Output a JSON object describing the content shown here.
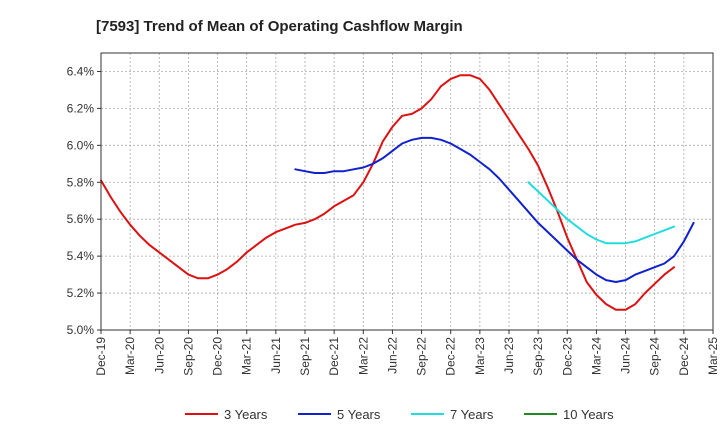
{
  "chart_data": {
    "type": "line",
    "title": "[7593]  Trend of Mean of Operating Cashflow Margin",
    "xlabel": "",
    "ylabel": "",
    "ylim": [
      5.0,
      6.5
    ],
    "y_ticks": [
      5.0,
      5.2,
      5.4,
      5.6,
      5.8,
      6.0,
      6.2,
      6.4
    ],
    "y_tick_labels": [
      "5.0%",
      "5.2%",
      "5.4%",
      "5.6%",
      "5.8%",
      "6.0%",
      "6.2%",
      "6.4%"
    ],
    "x_ticks": [
      "Dec-19",
      "Mar-20",
      "Jun-20",
      "Sep-20",
      "Dec-20",
      "Mar-21",
      "Jun-21",
      "Sep-21",
      "Dec-21",
      "Mar-22",
      "Jun-22",
      "Sep-22",
      "Dec-22",
      "Mar-23",
      "Jun-23",
      "Sep-23",
      "Dec-23",
      "Mar-24",
      "Jun-24",
      "Sep-24",
      "Dec-24",
      "Mar-25"
    ],
    "grid": true,
    "legend_position": "bottom",
    "series": [
      {
        "name": "3 Years",
        "color": "#dd1111",
        "start_index": 0,
        "values": [
          5.81,
          5.72,
          5.64,
          5.57,
          5.51,
          5.46,
          5.42,
          5.38,
          5.34,
          5.3,
          5.28,
          5.28,
          5.3,
          5.33,
          5.37,
          5.42,
          5.46,
          5.5,
          5.53,
          5.55,
          5.57,
          5.58,
          5.6,
          5.63,
          5.67,
          5.7,
          5.73,
          5.8,
          5.9,
          6.02,
          6.1,
          6.16,
          6.17,
          6.2,
          6.25,
          6.32,
          6.36,
          6.38,
          6.38,
          6.36,
          6.3,
          6.22,
          6.14,
          6.06,
          5.98,
          5.89,
          5.77,
          5.64,
          5.5,
          5.38,
          5.26,
          5.19,
          5.14,
          5.11,
          5.11,
          5.14,
          5.2,
          5.25,
          5.3,
          5.34
        ]
      },
      {
        "name": "5 Years",
        "color": "#1122cc",
        "start_index": 20,
        "values": [
          5.87,
          5.86,
          5.85,
          5.85,
          5.86,
          5.86,
          5.87,
          5.88,
          5.9,
          5.93,
          5.97,
          6.01,
          6.03,
          6.04,
          6.04,
          6.03,
          6.01,
          5.98,
          5.95,
          5.91,
          5.87,
          5.82,
          5.76,
          5.7,
          5.64,
          5.58,
          5.53,
          5.48,
          5.43,
          5.38,
          5.34,
          5.3,
          5.27,
          5.26,
          5.27,
          5.3,
          5.32,
          5.34,
          5.36,
          5.4,
          5.48,
          5.58
        ]
      },
      {
        "name": "7 Years",
        "color": "#22dddd",
        "start_index": 44,
        "values": [
          5.8,
          5.75,
          5.7,
          5.65,
          5.6,
          5.56,
          5.52,
          5.49,
          5.47,
          5.47,
          5.47,
          5.48,
          5.5,
          5.52,
          5.54,
          5.56
        ]
      },
      {
        "name": "10 Years",
        "color": "#228822",
        "start_index": 0,
        "values": []
      }
    ]
  }
}
